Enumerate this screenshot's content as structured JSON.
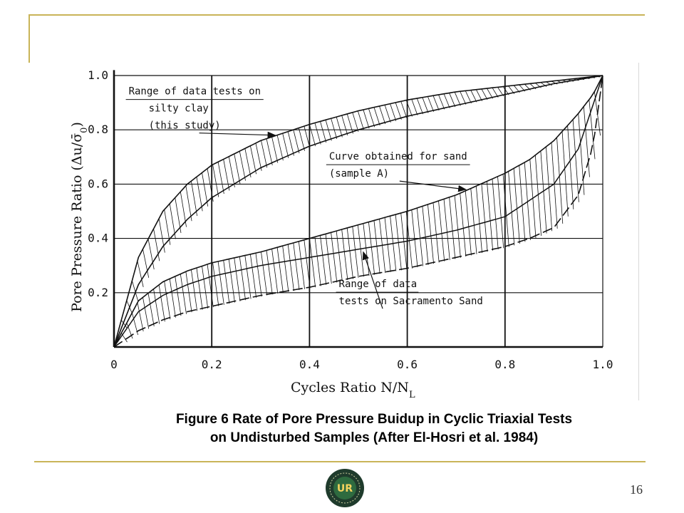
{
  "colors": {
    "frame": "#c9b458",
    "ink": "#111111",
    "logo_outer": "#1f3b2c",
    "logo_inner": "#2e6b3f",
    "logo_text": "#f4d35e"
  },
  "caption": {
    "line1": "Figure 6 Rate of Pore Pressure Buidup in Cyclic Triaxial Tests",
    "line2": "on Undisturbed Samples (After El-Hosri et al. 1984)"
  },
  "page_number": "16",
  "logo": {
    "icon": "university-seal-icon",
    "text": "UR"
  },
  "chart_data": {
    "type": "line",
    "title": "",
    "xlabel": "Cycles Ratio  N/N",
    "xlabel_sub": "L",
    "ylabel": "Pore Pressure Ratio (Δu/σ̄",
    "ylabel_sub": "0",
    "ylabel_close": ")",
    "xlim": [
      0,
      1
    ],
    "ylim": [
      0,
      1
    ],
    "grid": true,
    "x_ticks": [
      0,
      0.2,
      0.4,
      0.6,
      0.8,
      1.0
    ],
    "x_tick_labels": [
      "0",
      "0.2",
      "0.4",
      "0.6",
      "0.8",
      "1.0"
    ],
    "y_ticks": [
      0.2,
      0.4,
      0.6,
      0.8,
      1.0
    ],
    "y_tick_labels": [
      "0.2",
      "0.4",
      "0.6",
      "0.8",
      "1.0"
    ],
    "bands": [
      {
        "x": [
          0,
          0.05,
          0.1,
          0.15,
          0.2,
          0.3,
          0.4,
          0.5,
          0.6,
          0.7,
          0.8,
          0.9,
          1.0
        ],
        "upper": [
          0,
          0.33,
          0.5,
          0.6,
          0.67,
          0.76,
          0.82,
          0.87,
          0.91,
          0.94,
          0.96,
          0.98,
          1.0
        ],
        "lower": [
          0,
          0.23,
          0.37,
          0.47,
          0.55,
          0.66,
          0.74,
          0.8,
          0.85,
          0.89,
          0.93,
          0.97,
          1.0
        ]
      },
      {
        "x": [
          0,
          0.05,
          0.1,
          0.15,
          0.2,
          0.3,
          0.4,
          0.5,
          0.6,
          0.7,
          0.8,
          0.85,
          0.9,
          0.95,
          0.98,
          1.0
        ],
        "upper": [
          0,
          0.17,
          0.24,
          0.28,
          0.31,
          0.35,
          0.4,
          0.45,
          0.5,
          0.56,
          0.64,
          0.69,
          0.76,
          0.86,
          0.93,
          1.0
        ],
        "lower": [
          0,
          0.06,
          0.1,
          0.13,
          0.15,
          0.19,
          0.22,
          0.26,
          0.29,
          0.33,
          0.37,
          0.4,
          0.44,
          0.56,
          0.74,
          1.0
        ]
      }
    ],
    "series": [
      {
        "x": [
          0,
          0.05,
          0.1,
          0.15,
          0.2,
          0.3,
          0.4,
          0.5,
          0.6,
          0.7,
          0.8,
          0.9,
          0.95,
          1.0
        ],
        "values": [
          0,
          0.13,
          0.19,
          0.23,
          0.26,
          0.3,
          0.33,
          0.36,
          0.39,
          0.43,
          0.48,
          0.6,
          0.73,
          1.0
        ]
      }
    ],
    "annotations": [
      {
        "lines": [
          "Range of data tests on",
          "silty clay",
          "(this study)"
        ],
        "x": 0.03,
        "y": 0.93,
        "arrow_to": [
          0.33,
          0.78
        ]
      },
      {
        "lines": [
          "Curve obtained for sand",
          "(sample A)"
        ],
        "x": 0.44,
        "y": 0.69,
        "arrow_to": [
          0.72,
          0.58
        ]
      },
      {
        "lines": [
          "Range of data",
          "tests on Sacramento Sand"
        ],
        "x": 0.46,
        "y": 0.22,
        "arrow_to": [
          0.51,
          0.35
        ]
      }
    ]
  }
}
